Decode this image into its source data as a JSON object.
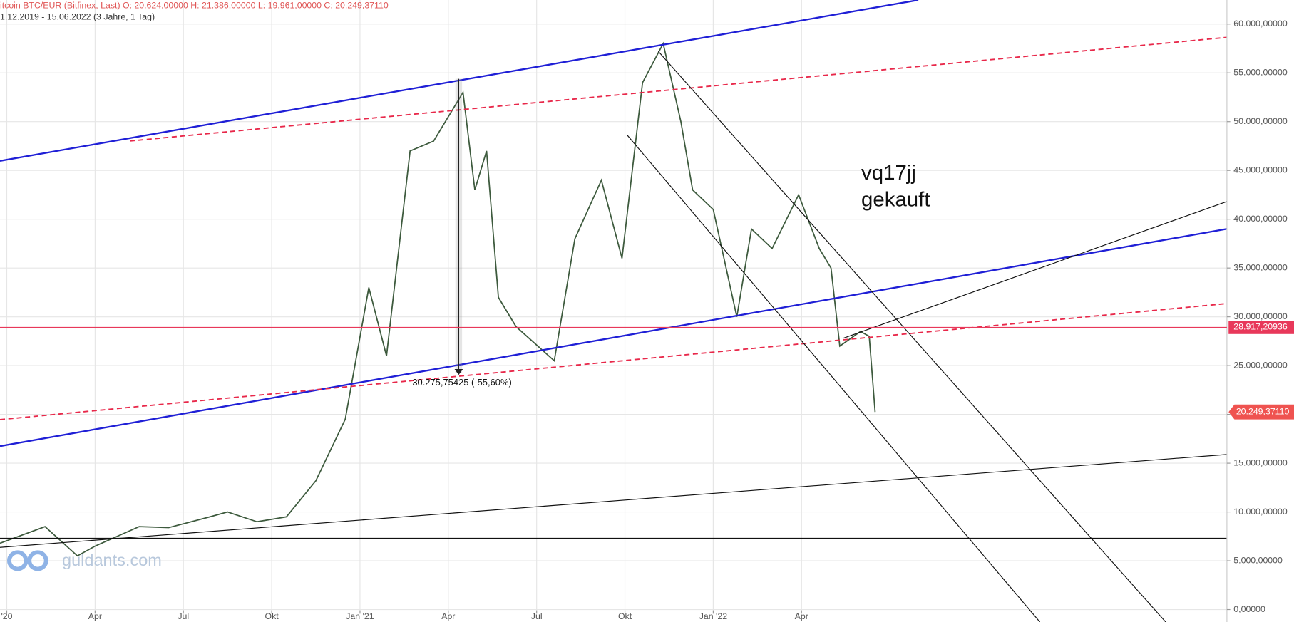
{
  "chart_data": {
    "type": "line",
    "title": "itcoin BTC/EUR (Bitfinex, Last)  O: 20.624,00000  H: 21.386,00000  L: 19.961,00000  C: 20.249,37110",
    "subtitle": "1.12.2019 - 15.06.2022   (3 Jahre, 1 Tag)",
    "x": [
      -0.23,
      1.3,
      2.4,
      3,
      4.5,
      5.5,
      6.9,
      7.5,
      8.5,
      9.5,
      10.5,
      11.5,
      12.3,
      12.9,
      13.7,
      14.5,
      15.5,
      15.9,
      16.3,
      16.7,
      17.3,
      18.6,
      19.3,
      20.2,
      20.9,
      21.6,
      22.3,
      22.9,
      23.3,
      24,
      24.8,
      25.3,
      26,
      26.9,
      27.6,
      28,
      28.3,
      29,
      29.3,
      29.5
    ],
    "color": "#3d5a3d",
    "values": [
      6800,
      8500,
      5500,
      6500,
      8500,
      8400,
      9500,
      10000,
      9000,
      9500,
      13200,
      19500,
      33000,
      26000,
      47000,
      48000,
      53000,
      43000,
      47000,
      32000,
      29000,
      25500,
      38000,
      44000,
      36000,
      54000,
      58000,
      50000,
      43000,
      41000,
      30000,
      39000,
      37000,
      42500,
      37000,
      35000,
      27000,
      28500,
      28000,
      20249.3711
    ],
    "xlim": [
      -0.23,
      41.45
    ],
    "xticks": [
      {
        "value": 0,
        "label": "'20"
      },
      {
        "value": 3,
        "label": "Apr"
      },
      {
        "value": 6,
        "label": "Jul"
      },
      {
        "value": 9,
        "label": "Okt"
      },
      {
        "value": 12,
        "label": "Jan '21"
      },
      {
        "value": 15,
        "label": "Apr"
      },
      {
        "value": 18,
        "label": "Jul"
      },
      {
        "value": 21,
        "label": "Okt"
      },
      {
        "value": 24,
        "label": "Jan '22"
      },
      {
        "value": 27,
        "label": "Apr"
      }
    ],
    "ylim": [
      -1275,
      62465
    ],
    "yticks": [
      {
        "value": 0,
        "label": "0,00000"
      },
      {
        "value": 5000,
        "label": "5.000,00000"
      },
      {
        "value": 10000,
        "label": "10.000,00000"
      },
      {
        "value": 15000,
        "label": "15.000,00000"
      },
      {
        "value": 20000,
        "label": "20.000,00000"
      },
      {
        "value": 25000,
        "label": "25.000,00000"
      },
      {
        "value": 30000,
        "label": "30.000,00000"
      },
      {
        "value": 35000,
        "label": "35.000,00000"
      },
      {
        "value": 40000,
        "label": "40.000,00000"
      },
      {
        "value": 45000,
        "label": "45.000,00000"
      },
      {
        "value": 50000,
        "label": "50.000,00000"
      },
      {
        "value": 55000,
        "label": "55.000,00000"
      },
      {
        "value": 60000,
        "label": "60.000,00000"
      }
    ],
    "grid": true,
    "hline": {
      "value": 28917.20936,
      "label": "28.917,20936",
      "color": "#e8385a"
    },
    "last_price": {
      "value": 20249.3711,
      "label": "20.249,37110",
      "color": "#ef5350"
    },
    "annotations": [
      "vq17jj",
      "gekauft"
    ],
    "measure_label": "-30.275,75425 (-55,60%)",
    "watermark": "guldants.com"
  }
}
